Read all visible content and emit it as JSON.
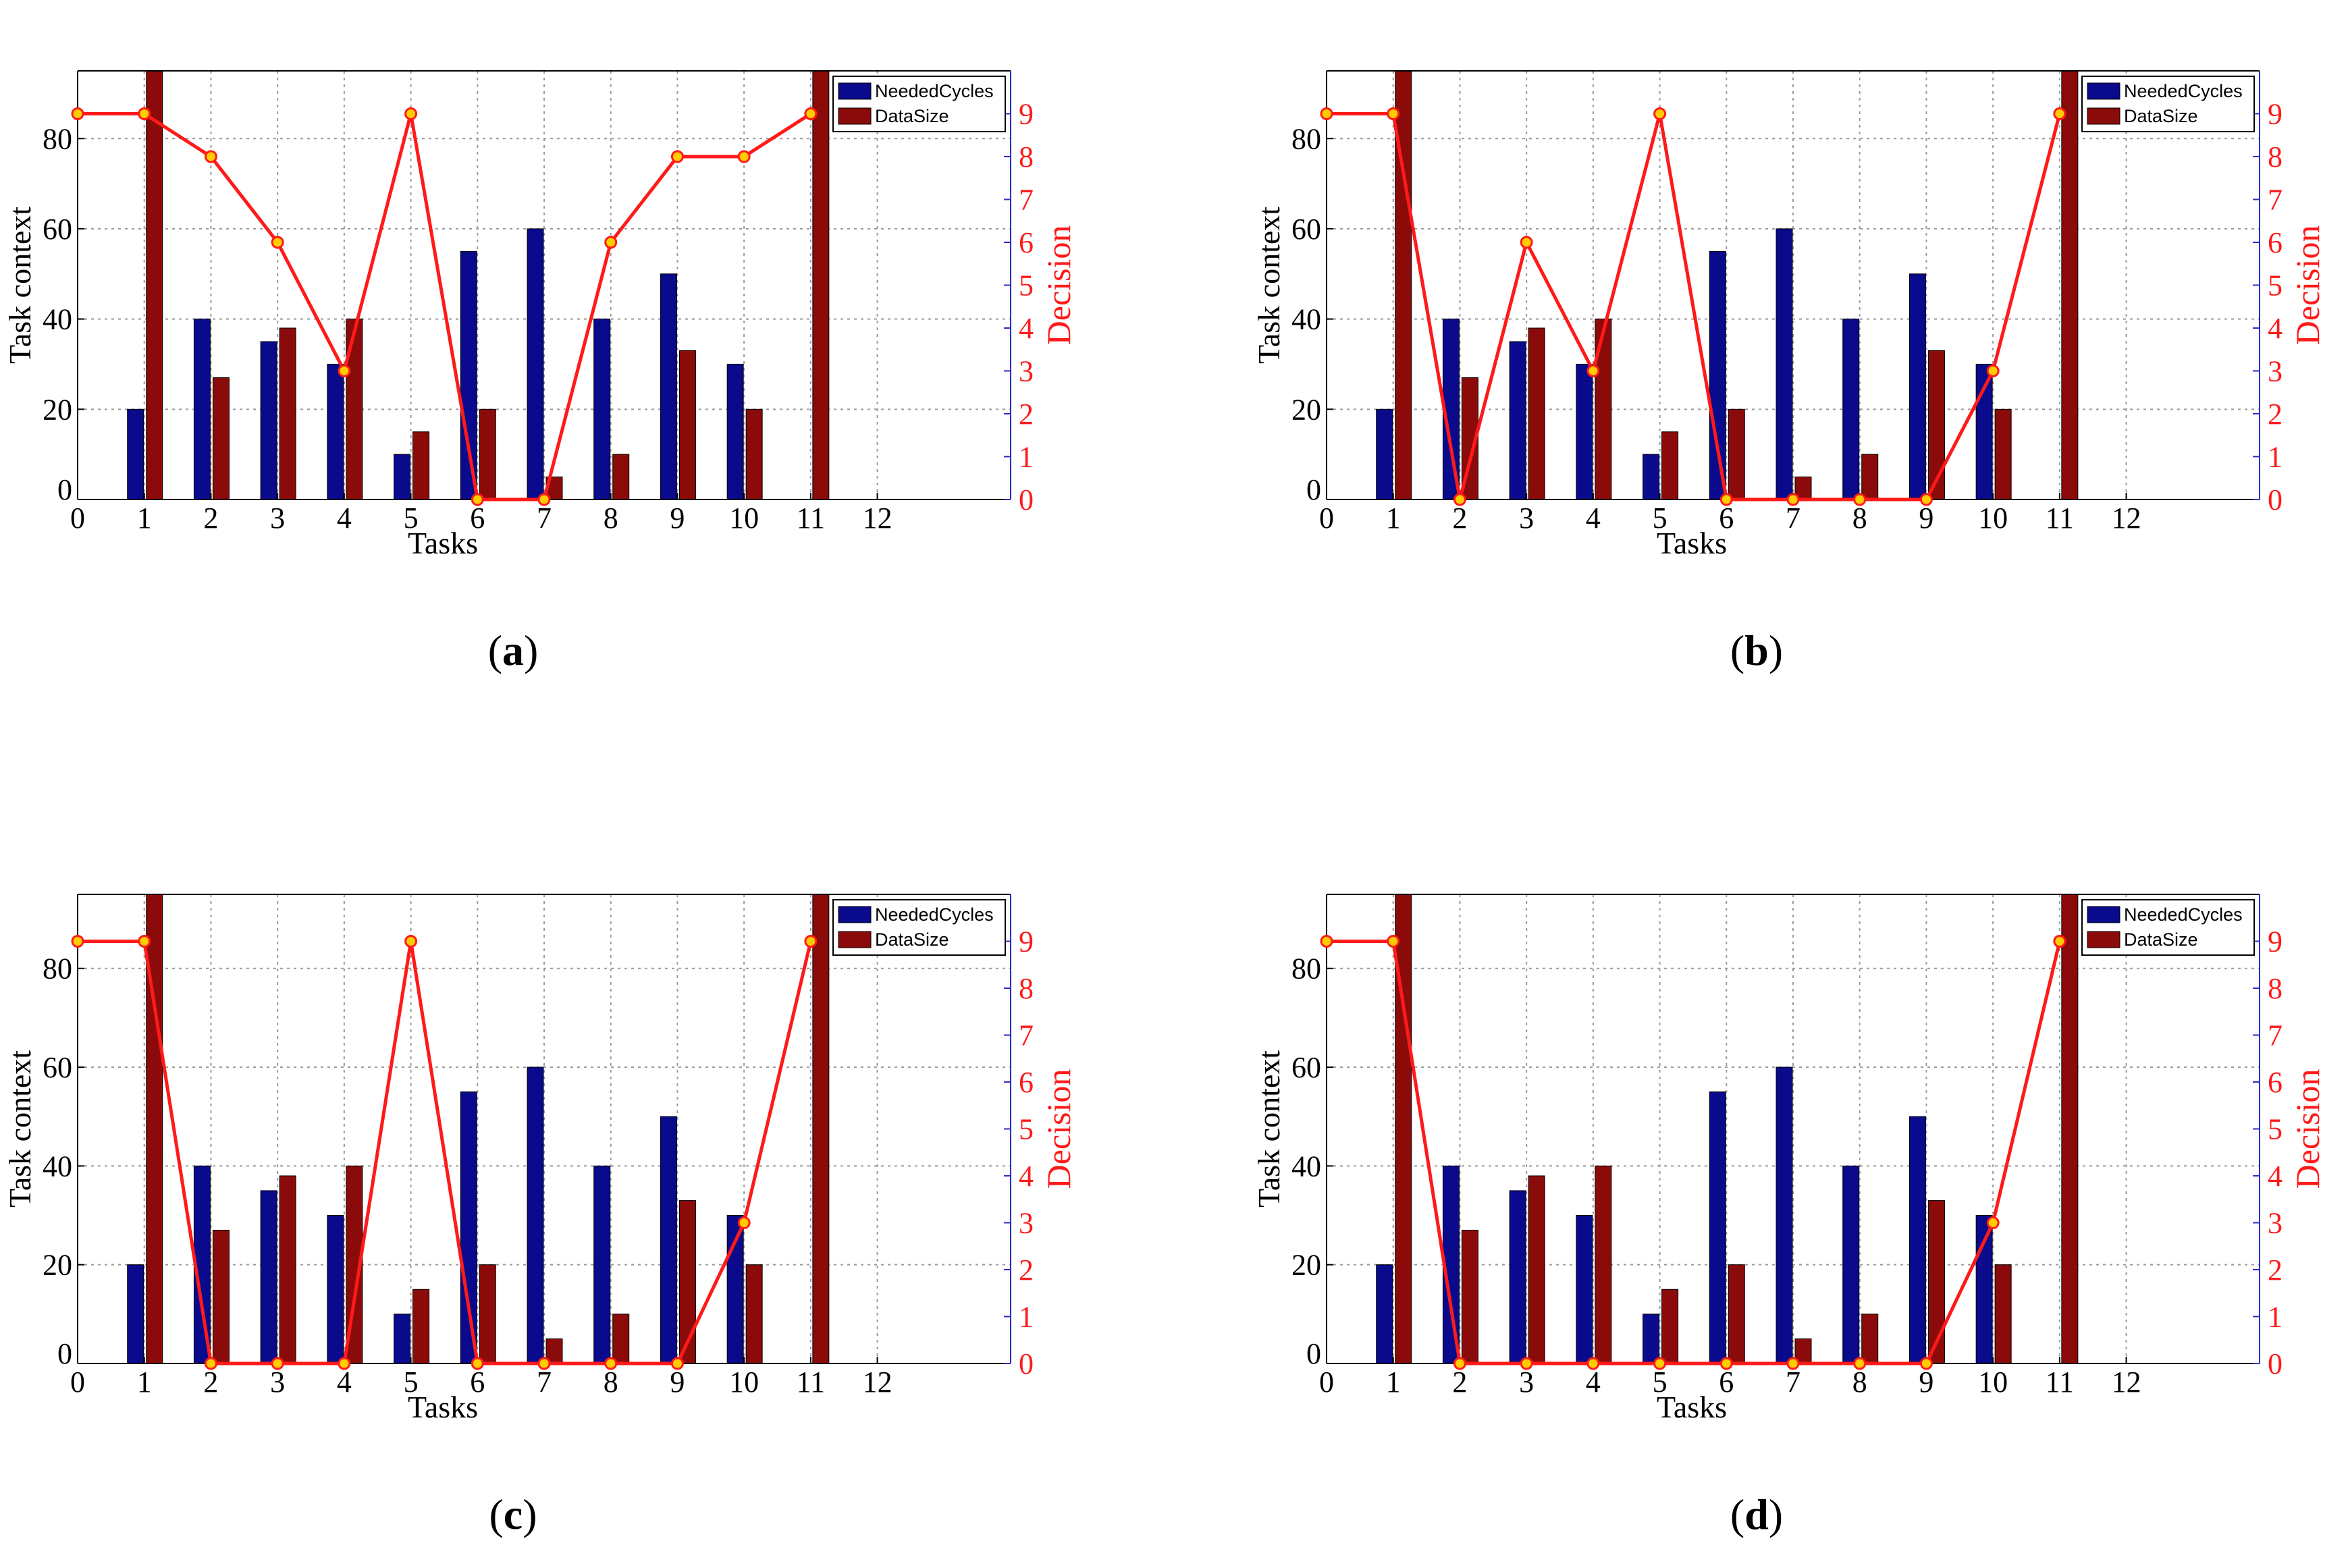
{
  "colors": {
    "needed_cycles": "#0a0a8c",
    "data_size": "#8b0b0b",
    "decision_line": "#ff1a1a",
    "decision_marker_fill": "#ffcc00",
    "right_axis_labels": "#ff1a1a",
    "grid": "#9a9a9a"
  },
  "chart_data": [
    {
      "type": "bar",
      "panel_label": "(a)",
      "panel_letter": "a",
      "xlabel": "Tasks",
      "ylabel": "Task context",
      "y2label": "Decision",
      "xticks": [
        "0",
        "1",
        "2",
        "3",
        "4",
        "5",
        "6",
        "7",
        "8",
        "9",
        "10",
        "11",
        "12"
      ],
      "yticks": [
        "0",
        "20",
        "40",
        "60",
        "80"
      ],
      "y2ticks": [
        "0",
        "1",
        "2",
        "3",
        "4",
        "5",
        "6",
        "7",
        "8",
        "9"
      ],
      "xlim": [
        0,
        14
      ],
      "ylim": [
        0,
        95
      ],
      "y2lim": [
        0,
        10
      ],
      "legend": [
        "NeededCycles",
        "DataSize"
      ],
      "categories": [
        1,
        2,
        3,
        4,
        5,
        6,
        7,
        8,
        9,
        10,
        11
      ],
      "series": [
        {
          "name": "NeededCycles",
          "values": [
            20,
            40,
            35,
            30,
            10,
            55,
            60,
            40,
            50,
            30,
            0
          ]
        },
        {
          "name": "DataSize",
          "values": [
            95,
            27,
            38,
            40,
            15,
            20,
            5,
            10,
            33,
            20,
            95
          ]
        }
      ],
      "decision": {
        "x": [
          0,
          1,
          2,
          3,
          4,
          5,
          6,
          7,
          8,
          9,
          10,
          11
        ],
        "y": [
          9,
          9,
          8,
          6,
          3,
          9,
          0,
          0,
          6,
          8,
          8,
          9
        ]
      }
    },
    {
      "type": "bar",
      "panel_label": "(b)",
      "panel_letter": "b",
      "xlabel": "Tasks",
      "ylabel": "Task context",
      "y2label": "Decision",
      "xticks": [
        "0",
        "1",
        "2",
        "3",
        "4",
        "5",
        "6",
        "7",
        "8",
        "9",
        "10",
        "11",
        "12"
      ],
      "yticks": [
        "0",
        "20",
        "40",
        "60",
        "80"
      ],
      "y2ticks": [
        "0",
        "1",
        "2",
        "3",
        "4",
        "5",
        "6",
        "7",
        "8",
        "9"
      ],
      "xlim": [
        0,
        14
      ],
      "ylim": [
        0,
        95
      ],
      "y2lim": [
        0,
        10
      ],
      "legend": [
        "NeededCycles",
        "DataSize"
      ],
      "categories": [
        1,
        2,
        3,
        4,
        5,
        6,
        7,
        8,
        9,
        10,
        11
      ],
      "series": [
        {
          "name": "NeededCycles",
          "values": [
            20,
            40,
            35,
            30,
            10,
            55,
            60,
            40,
            50,
            30,
            0
          ]
        },
        {
          "name": "DataSize",
          "values": [
            95,
            27,
            38,
            40,
            15,
            20,
            5,
            10,
            33,
            20,
            95
          ]
        }
      ],
      "decision": {
        "x": [
          0,
          1,
          2,
          3,
          4,
          5,
          6,
          7,
          8,
          9,
          10,
          11
        ],
        "y": [
          9,
          9,
          0,
          6,
          3,
          9,
          0,
          0,
          0,
          0,
          3,
          9
        ]
      }
    },
    {
      "type": "bar",
      "panel_label": "(c)",
      "panel_letter": "c",
      "xlabel": "Tasks",
      "ylabel": "Task context",
      "y2label": "Decision",
      "xticks": [
        "0",
        "1",
        "2",
        "3",
        "4",
        "5",
        "6",
        "7",
        "8",
        "9",
        "10",
        "11",
        "12"
      ],
      "yticks": [
        "0",
        "20",
        "40",
        "60",
        "80"
      ],
      "y2ticks": [
        "0",
        "1",
        "2",
        "3",
        "4",
        "5",
        "6",
        "7",
        "8",
        "9"
      ],
      "xlim": [
        0,
        14
      ],
      "ylim": [
        0,
        95
      ],
      "y2lim": [
        0,
        10
      ],
      "legend": [
        "NeededCycles",
        "DataSize"
      ],
      "categories": [
        1,
        2,
        3,
        4,
        5,
        6,
        7,
        8,
        9,
        10,
        11
      ],
      "series": [
        {
          "name": "NeededCycles",
          "values": [
            20,
            40,
            35,
            30,
            10,
            55,
            60,
            40,
            50,
            30,
            0
          ]
        },
        {
          "name": "DataSize",
          "values": [
            95,
            27,
            38,
            40,
            15,
            20,
            5,
            10,
            33,
            20,
            95
          ]
        }
      ],
      "decision": {
        "x": [
          0,
          1,
          2,
          3,
          4,
          5,
          6,
          7,
          8,
          9,
          10,
          11
        ],
        "y": [
          9,
          9,
          0,
          0,
          0,
          9,
          0,
          0,
          0,
          0,
          3,
          9
        ]
      }
    },
    {
      "type": "bar",
      "panel_label": "(d)",
      "panel_letter": "d",
      "xlabel": "Tasks",
      "ylabel": "Task context",
      "y2label": "Decision",
      "xticks": [
        "0",
        "1",
        "2",
        "3",
        "4",
        "5",
        "6",
        "7",
        "8",
        "9",
        "10",
        "11",
        "12"
      ],
      "yticks": [
        "0",
        "20",
        "40",
        "60",
        "80"
      ],
      "y2ticks": [
        "0",
        "1",
        "2",
        "3",
        "4",
        "5",
        "6",
        "7",
        "8",
        "9"
      ],
      "xlim": [
        0,
        14
      ],
      "ylim": [
        0,
        95
      ],
      "y2lim": [
        0,
        10
      ],
      "legend": [
        "NeededCycles",
        "DataSize"
      ],
      "categories": [
        1,
        2,
        3,
        4,
        5,
        6,
        7,
        8,
        9,
        10,
        11
      ],
      "series": [
        {
          "name": "NeededCycles",
          "values": [
            20,
            40,
            35,
            30,
            10,
            55,
            60,
            40,
            50,
            30,
            0
          ]
        },
        {
          "name": "DataSize",
          "values": [
            95,
            27,
            38,
            40,
            15,
            20,
            5,
            10,
            33,
            20,
            95
          ]
        }
      ],
      "decision": {
        "x": [
          0,
          1,
          2,
          3,
          4,
          5,
          6,
          7,
          8,
          9,
          10,
          11
        ],
        "y": [
          9,
          9,
          0,
          0,
          0,
          0,
          0,
          0,
          0,
          0,
          3,
          9
        ]
      }
    }
  ]
}
